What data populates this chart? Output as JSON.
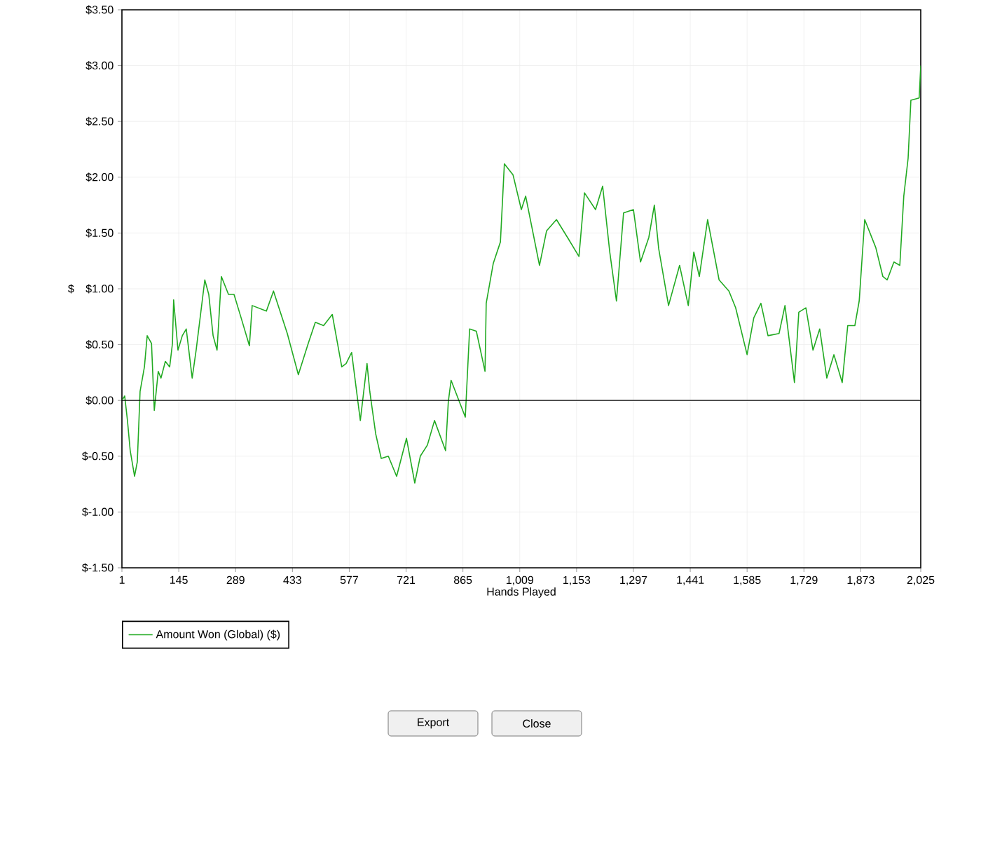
{
  "chart_data": {
    "type": "line",
    "xlabel": "Hands Played",
    "ylabel": "$",
    "x": [
      1,
      8,
      15,
      22,
      33,
      40,
      47,
      58,
      65,
      76,
      83,
      93,
      100,
      111,
      122,
      129,
      132,
      143,
      154,
      164,
      179,
      189,
      211,
      221,
      232,
      242,
      253,
      271,
      285,
      303,
      324,
      331,
      367,
      385,
      420,
      448,
      473,
      491,
      512,
      534,
      558,
      569,
      583,
      605,
      622,
      629,
      644,
      658,
      676,
      697,
      722,
      743,
      757,
      775,
      793,
      821,
      828,
      835,
      871,
      882,
      899,
      921,
      924,
      942,
      960,
      970,
      992,
      1013,
      1024,
      1059,
      1077,
      1102,
      1130,
      1159,
      1173,
      1201,
      1219,
      1237,
      1254,
      1272,
      1297,
      1315,
      1336,
      1350,
      1361,
      1386,
      1414,
      1436,
      1450,
      1464,
      1485,
      1514,
      1539,
      1556,
      1585,
      1602,
      1620,
      1638,
      1666,
      1681,
      1705,
      1716,
      1734,
      1752,
      1769,
      1787,
      1805,
      1826,
      1840,
      1858,
      1869,
      1883,
      1911,
      1929,
      1940,
      1957,
      1972,
      1982,
      1993,
      2000,
      2021,
      2025
    ],
    "series": [
      {
        "name": "Amount Won (Global) ($)",
        "color": "#22aa22",
        "values": [
          0.0,
          0.04,
          -0.18,
          -0.45,
          -0.68,
          -0.55,
          0.08,
          0.3,
          0.58,
          0.51,
          -0.09,
          0.26,
          0.2,
          0.35,
          0.3,
          0.51,
          0.9,
          0.45,
          0.58,
          0.64,
          0.2,
          0.45,
          1.08,
          0.95,
          0.58,
          0.45,
          1.11,
          0.95,
          0.95,
          0.74,
          0.49,
          0.85,
          0.8,
          0.98,
          0.6,
          0.23,
          0.51,
          0.7,
          0.67,
          0.77,
          0.3,
          0.33,
          0.43,
          -0.18,
          0.33,
          0.08,
          -0.3,
          -0.52,
          -0.5,
          -0.68,
          -0.34,
          -0.74,
          -0.5,
          -0.4,
          -0.18,
          -0.45,
          -0.01,
          0.18,
          -0.15,
          0.64,
          0.62,
          0.26,
          0.87,
          1.23,
          1.42,
          2.12,
          2.02,
          1.71,
          1.83,
          1.21,
          1.52,
          1.62,
          1.46,
          1.29,
          1.86,
          1.71,
          1.92,
          1.33,
          0.89,
          1.68,
          1.71,
          1.24,
          1.46,
          1.75,
          1.36,
          0.85,
          1.21,
          0.85,
          1.33,
          1.11,
          1.62,
          1.08,
          0.98,
          0.83,
          0.41,
          0.74,
          0.87,
          0.58,
          0.6,
          0.85,
          0.16,
          0.79,
          0.83,
          0.45,
          0.64,
          0.2,
          0.41,
          0.16,
          0.67,
          0.67,
          0.89,
          1.62,
          1.37,
          1.11,
          1.08,
          1.24,
          1.21,
          1.83,
          2.17,
          2.69,
          2.71,
          3.0
        ]
      }
    ],
    "xlim": [
      1,
      2025
    ],
    "xticks": [
      1,
      145,
      289,
      433,
      577,
      721,
      865,
      {
        "value": 1009,
        "label": "1,009"
      },
      {
        "value": 1153,
        "label": "1,153"
      },
      {
        "value": 1297,
        "label": "1,297"
      },
      {
        "value": 1441,
        "label": "1,441"
      },
      {
        "value": 1585,
        "label": "1,585"
      },
      {
        "value": 1729,
        "label": "1,729"
      },
      {
        "value": 1873,
        "label": "1,873"
      },
      {
        "value": 2025,
        "label": "2,025"
      }
    ],
    "ylim": [
      -1.5,
      3.5
    ],
    "yticks": [
      {
        "value": -1.5,
        "label": "$-1.50"
      },
      {
        "value": -1.0,
        "label": "$-1.00"
      },
      {
        "value": -0.5,
        "label": "$-0.50"
      },
      {
        "value": 0.0,
        "label": "$0.00"
      },
      {
        "value": 0.5,
        "label": "$0.50"
      },
      {
        "value": 1.0,
        "label": "$1.00"
      },
      {
        "value": 1.5,
        "label": "$1.50"
      },
      {
        "value": 2.0,
        "label": "$2.00"
      },
      {
        "value": 2.5,
        "label": "$2.50"
      },
      {
        "value": 3.0,
        "label": "$3.00"
      },
      {
        "value": 3.5,
        "label": "$3.50"
      }
    ],
    "ref_lines": [
      {
        "axis": "y",
        "value": 0,
        "color": "#000000",
        "line_style": "solid"
      }
    ],
    "grid": true,
    "legend": "bottom left",
    "marker": "none",
    "line_style": "solid",
    "annotations": [
      "Export",
      "Close"
    ]
  }
}
